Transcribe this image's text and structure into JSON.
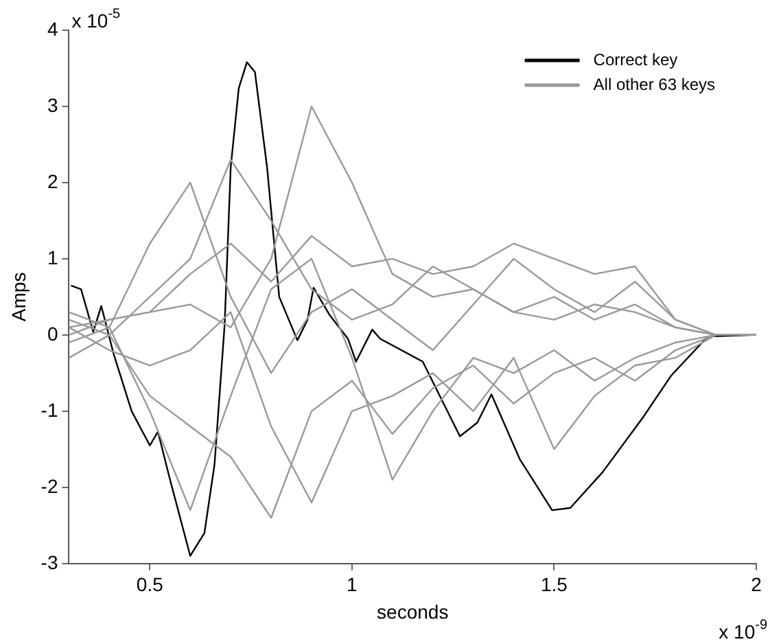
{
  "chart_data": {
    "type": "line",
    "xlabel": "seconds",
    "ylabel": "Amps",
    "xlim": [
      0.3,
      2
    ],
    "xticks": [
      0.5,
      1,
      1.5,
      2
    ],
    "ylim": [
      -3,
      4
    ],
    "yticks": [
      -3,
      -2,
      -1,
      0,
      1,
      2,
      3,
      4
    ],
    "grid": false,
    "legend": "top right",
    "marker": "none",
    "line_style": "solid",
    "annotations": [
      "x 10$^{-5}$",
      "x 10$^{-9}$"
    ],
    "series": [
      {
        "name": "All other 63 keys",
        "color": "#999999",
        "x": [
          0.3,
          0.4,
          0.5,
          0.6,
          0.7,
          0.8,
          0.9,
          1.0,
          1.1,
          1.2,
          1.3,
          1.4,
          1.5,
          1.6,
          1.7,
          1.8,
          1.9,
          2.0
        ],
        "values": [
          0.1,
          0.2,
          0.3,
          0.4,
          0.1,
          1.0,
          3.0,
          2.0,
          0.8,
          0.5,
          0.6,
          0.3,
          0.2,
          0.4,
          0.3,
          0.1,
          0,
          0
        ]
      },
      {
        "color": "#999999",
        "x": [
          0.3,
          0.4,
          0.5,
          0.6,
          0.7,
          0.8,
          0.9,
          1.0,
          1.1,
          1.2,
          1.3,
          1.4,
          1.5,
          1.6,
          1.7,
          1.8,
          1.9,
          2.0
        ],
        "values": [
          0.2,
          0,
          0.5,
          1.0,
          2.3,
          1.5,
          0.6,
          0.2,
          0.4,
          0.9,
          0.6,
          0.3,
          0.5,
          0.2,
          0.4,
          0.1,
          0,
          0
        ]
      },
      {
        "color": "#999999",
        "x": [
          0.3,
          0.4,
          0.5,
          0.6,
          0.7,
          0.8,
          0.9,
          1.0,
          1.1,
          1.2,
          1.3,
          1.4,
          1.5,
          1.6,
          1.7,
          1.8,
          1.9,
          2.0
        ],
        "values": [
          0.3,
          0.1,
          1.2,
          2.0,
          0.5,
          -0.5,
          0.3,
          0.6,
          0.2,
          -0.2,
          0.4,
          1.0,
          0.6,
          0.3,
          0.7,
          0.2,
          0,
          0
        ]
      },
      {
        "color": "#999999",
        "x": [
          0.3,
          0.4,
          0.5,
          0.6,
          0.7,
          0.8,
          0.9,
          1.0,
          1.1,
          1.2,
          1.3,
          1.4,
          1.5,
          1.6,
          1.7,
          1.8,
          1.9,
          2.0
        ],
        "values": [
          -0.3,
          0,
          -0.8,
          -1.2,
          -1.6,
          -2.4,
          -1.0,
          -0.6,
          -1.3,
          -0.7,
          -0.4,
          -0.9,
          -0.5,
          -0.3,
          -0.6,
          -0.2,
          0,
          0
        ]
      },
      {
        "color": "#999999",
        "x": [
          0.3,
          0.4,
          0.5,
          0.6,
          0.7,
          0.8,
          0.9,
          1.0,
          1.1,
          1.2,
          1.3,
          1.4,
          1.5,
          1.6,
          1.7,
          1.8,
          1.9,
          2.0
        ],
        "values": [
          0.1,
          -0.2,
          -0.4,
          -0.2,
          0.3,
          -1.2,
          -2.2,
          -1.0,
          -0.8,
          -0.5,
          -1.0,
          -0.3,
          -1.5,
          -0.8,
          -0.4,
          -0.3,
          0,
          0
        ]
      },
      {
        "color": "#999999",
        "x": [
          0.3,
          0.4,
          0.5,
          0.6,
          0.7,
          0.8,
          0.9,
          1.0,
          1.1,
          1.2,
          1.3,
          1.4,
          1.5,
          1.6,
          1.7,
          1.8,
          1.9,
          2.0
        ],
        "values": [
          -0.1,
          0.1,
          -1.0,
          -2.3,
          -0.8,
          0.6,
          1.0,
          -0.3,
          -1.9,
          -1.0,
          -0.3,
          -0.5,
          -0.2,
          -0.6,
          -0.3,
          -0.1,
          0,
          0
        ]
      },
      {
        "color": "#999999",
        "x": [
          0.3,
          0.4,
          0.5,
          0.6,
          0.7,
          0.8,
          0.9,
          1.0,
          1.1,
          1.2,
          1.3,
          1.4,
          1.5,
          1.6,
          1.7,
          1.8,
          1.9,
          2.0
        ],
        "values": [
          0,
          0.2,
          0.3,
          0.8,
          1.2,
          0.7,
          1.3,
          0.9,
          1.0,
          0.8,
          0.9,
          1.2,
          1.0,
          0.8,
          0.9,
          0.2,
          0,
          0
        ]
      },
      {
        "name": "Correct key",
        "color": "#000000",
        "x": [
          0.305,
          0.33,
          0.36,
          0.38,
          0.41,
          0.455,
          0.5,
          0.52,
          0.55,
          0.57,
          0.6,
          0.635,
          0.66,
          0.685,
          0.7,
          0.72,
          0.74,
          0.76,
          0.79,
          0.82,
          0.865,
          0.89,
          0.905,
          0.945,
          0.99,
          1.01,
          1.05,
          1.07,
          1.175,
          1.267,
          1.31,
          1.345,
          1.415,
          1.495,
          1.54,
          1.62,
          1.72,
          1.79,
          1.88,
          1.995
        ],
        "values": [
          0.65,
          0.6,
          0.04,
          0.38,
          -0.24,
          -1.0,
          -1.45,
          -1.27,
          -1.9,
          -2.3,
          -2.9,
          -2.6,
          -1.7,
          0.13,
          2.2,
          3.24,
          3.58,
          3.45,
          2.2,
          0.5,
          -0.07,
          0.2,
          0.62,
          0.26,
          -0.05,
          -0.35,
          0.07,
          -0.05,
          -0.35,
          -1.33,
          -1.15,
          -0.78,
          -1.63,
          -2.3,
          -2.27,
          -1.8,
          -1.08,
          -0.53,
          -0.02,
          0
        ]
      }
    ]
  }
}
